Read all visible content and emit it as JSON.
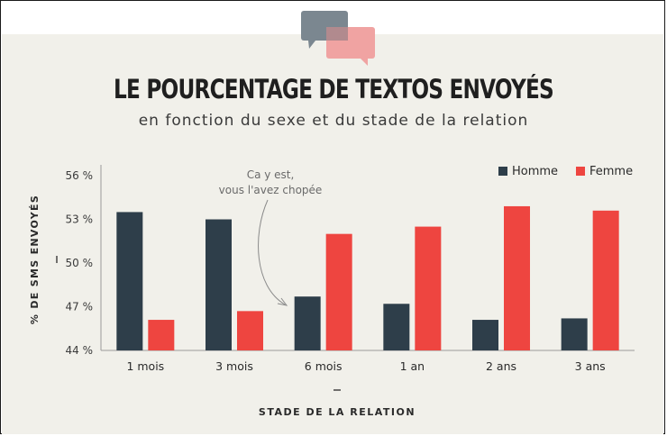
{
  "title": "LE POURCENTAGE DE TEXTOS ENVOYÉS",
  "subtitle": "en fonction du sexe et du stade de la relation",
  "icons": {
    "logo": "speech-bubbles-icon"
  },
  "colors": {
    "homme": "#2e3e4a",
    "femme": "#ee4540",
    "background": "#f1f0ea"
  },
  "chart_data": {
    "type": "bar",
    "categories": [
      "1 mois",
      "3 mois",
      "6 mois",
      "1 an",
      "2 ans",
      "3 ans"
    ],
    "series": [
      {
        "name": "Homme",
        "values": [
          53.5,
          53.0,
          47.7,
          47.2,
          46.1,
          46.2
        ]
      },
      {
        "name": "Femme",
        "values": [
          46.1,
          46.7,
          52.0,
          52.5,
          53.9,
          53.6
        ]
      }
    ],
    "ylabel": "% DE SMS ENVOYÉS",
    "xlabel": "STADE DE LA RELATION",
    "ylim": [
      44,
      56
    ],
    "yticks": [
      56,
      53,
      50,
      47,
      44
    ],
    "ytick_labels": [
      "56 %",
      "53 %",
      "50 %",
      "47 %",
      "44 %"
    ],
    "legend_position": "top-right",
    "grid": false,
    "annotation": {
      "lines": [
        "Ca y est,",
        "vous l'avez chopée"
      ],
      "target_category": "6 mois"
    }
  }
}
